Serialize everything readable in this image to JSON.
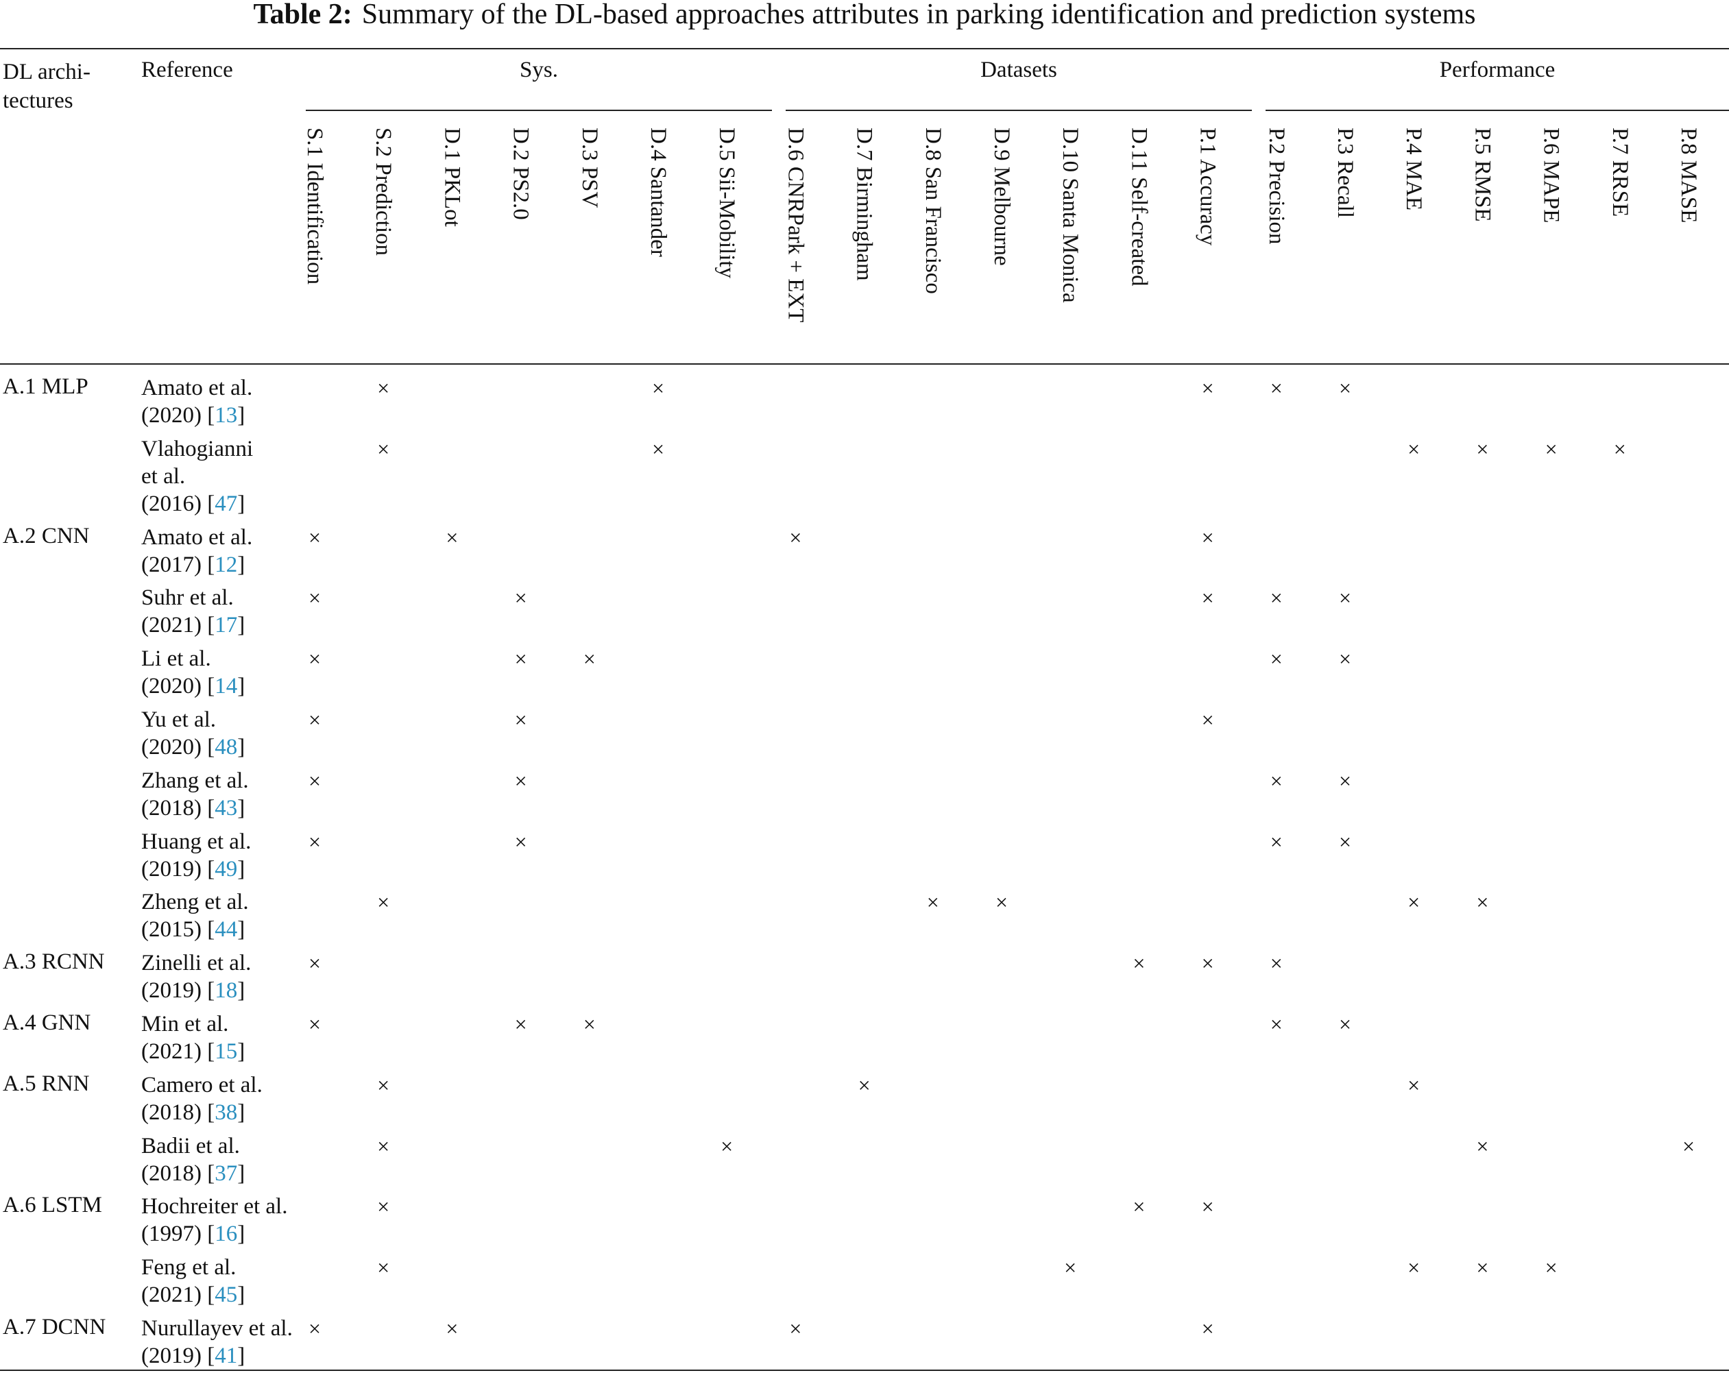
{
  "table": {
    "caption_label": "Table 2:",
    "caption_text": "Summary of the DL-based approaches attributes in parking identification and prediction systems",
    "headers": {
      "dl_arch": "DL archi- tectures",
      "reference": "Reference",
      "groups": [
        {
          "label": "Sys."
        },
        {
          "label": "Datasets"
        },
        {
          "label": "Performance"
        }
      ],
      "columns": [
        "S.1 Identification",
        "S.2 Prediction",
        "D.1 PKLot",
        "D.2 PS2.0",
        "D.3 PSV",
        "D.4 Santander",
        "D.5 Sii-Mobility",
        "D.6 CNRPark + EXT",
        "D.7 Birmingham",
        "D.8 San Francisco",
        "D.9 Melbourne",
        "D.10 Santa Monica",
        "D.11 Self-created",
        "P.1 Accuracy",
        "P.2 Precision",
        "P.3 Recall",
        "P.4 MAE",
        "P.5 RMSE",
        "P.6 MAPE",
        "P.7 RRSE",
        "P.8 MASE"
      ]
    },
    "mark_symbol": "×",
    "rows": [
      {
        "arch": "A.1 MLP",
        "ref_l1": "Amato et al.",
        "ref_year": "(2020) [",
        "ref_cite": "13",
        "ref_close": "]",
        "marks": [
          1,
          5,
          13,
          14,
          15
        ]
      },
      {
        "arch": "",
        "ref_l1": "Vlahogianni",
        "ref_l1b": "et al.",
        "ref_year": "(2016) [",
        "ref_cite": "47",
        "ref_close": "]",
        "marks": [
          1,
          5,
          16,
          17,
          18,
          19
        ]
      },
      {
        "arch": "A.2 CNN",
        "ref_l1": "Amato et al.",
        "ref_year": "(2017) [",
        "ref_cite": "12",
        "ref_close": "]",
        "marks": [
          0,
          2,
          7,
          13
        ]
      },
      {
        "arch": "",
        "ref_l1": "Suhr et al.",
        "ref_year": "(2021) [",
        "ref_cite": "17",
        "ref_close": "]",
        "marks": [
          0,
          3,
          13,
          14,
          15
        ]
      },
      {
        "arch": "",
        "ref_l1": "Li et al.",
        "ref_year": "(2020) [",
        "ref_cite": "14",
        "ref_close": "]",
        "marks": [
          0,
          3,
          4,
          14,
          15
        ]
      },
      {
        "arch": "",
        "ref_l1": "Yu et al.",
        "ref_year": "(2020) [",
        "ref_cite": "48",
        "ref_close": "]",
        "marks": [
          0,
          3,
          13
        ]
      },
      {
        "arch": "",
        "ref_l1": "Zhang et al.",
        "ref_year": "(2018) [",
        "ref_cite": "43",
        "ref_close": "]",
        "marks": [
          0,
          3,
          14,
          15
        ]
      },
      {
        "arch": "",
        "ref_l1": "Huang et al.",
        "ref_year": "(2019) [",
        "ref_cite": "49",
        "ref_close": "]",
        "marks": [
          0,
          3,
          14,
          15
        ]
      },
      {
        "arch": "",
        "ref_l1": "Zheng et al.",
        "ref_year": "(2015) [",
        "ref_cite": "44",
        "ref_close": "]",
        "marks": [
          1,
          9,
          10,
          16,
          17
        ]
      },
      {
        "arch": "A.3 RCNN",
        "ref_l1": "Zinelli et al.",
        "ref_year": "(2019) [",
        "ref_cite": "18",
        "ref_close": "]",
        "marks": [
          0,
          12,
          13,
          14
        ]
      },
      {
        "arch": "A.4 GNN",
        "ref_l1": "Min et al.",
        "ref_year": "(2021) [",
        "ref_cite": "15",
        "ref_close": "]",
        "marks": [
          0,
          3,
          4,
          14,
          15
        ]
      },
      {
        "arch": "A.5 RNN",
        "ref_l1": "Camero et al.",
        "ref_year": "(2018) [",
        "ref_cite": "38",
        "ref_close": "]",
        "marks": [
          1,
          8,
          16
        ]
      },
      {
        "arch": "",
        "ref_l1": "Badii et al.",
        "ref_year": "(2018) [",
        "ref_cite": "37",
        "ref_close": "]",
        "marks": [
          1,
          6,
          17,
          20
        ]
      },
      {
        "arch": "A.6 LSTM",
        "ref_l1": "Hochreiter et al.",
        "ref_year": "(1997) [",
        "ref_cite": "16",
        "ref_close": "]",
        "marks": [
          1,
          12,
          13
        ]
      },
      {
        "arch": "",
        "ref_l1": "Feng et al.",
        "ref_year": "(2021) [",
        "ref_cite": "45",
        "ref_close": "]",
        "marks": [
          1,
          11,
          16,
          17,
          18
        ]
      },
      {
        "arch": "A.7 DCNN",
        "ref_l1": "Nurullayev et al.",
        "ref_year": "(2019) [",
        "ref_cite": "41",
        "ref_close": "]",
        "marks": [
          0,
          2,
          7,
          13
        ]
      }
    ]
  }
}
